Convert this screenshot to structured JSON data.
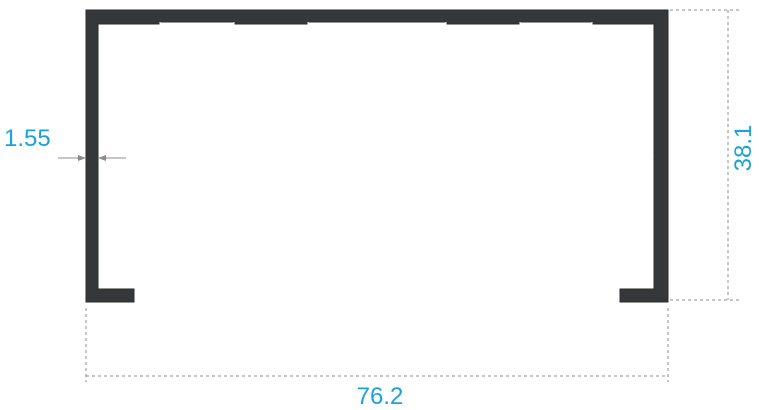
{
  "diagram": {
    "type": "c-channel-profile-cross-section",
    "dimensions": {
      "width_label": "76.2",
      "height_label": "38.1",
      "thickness_label": "1.55"
    },
    "colors": {
      "profile_fill": "#35383b",
      "profile_stroke": "#2a2c2e",
      "dimension_line": "#8c8c8c",
      "dimension_text": "#1aa3d9",
      "background": "#ffffff"
    }
  }
}
